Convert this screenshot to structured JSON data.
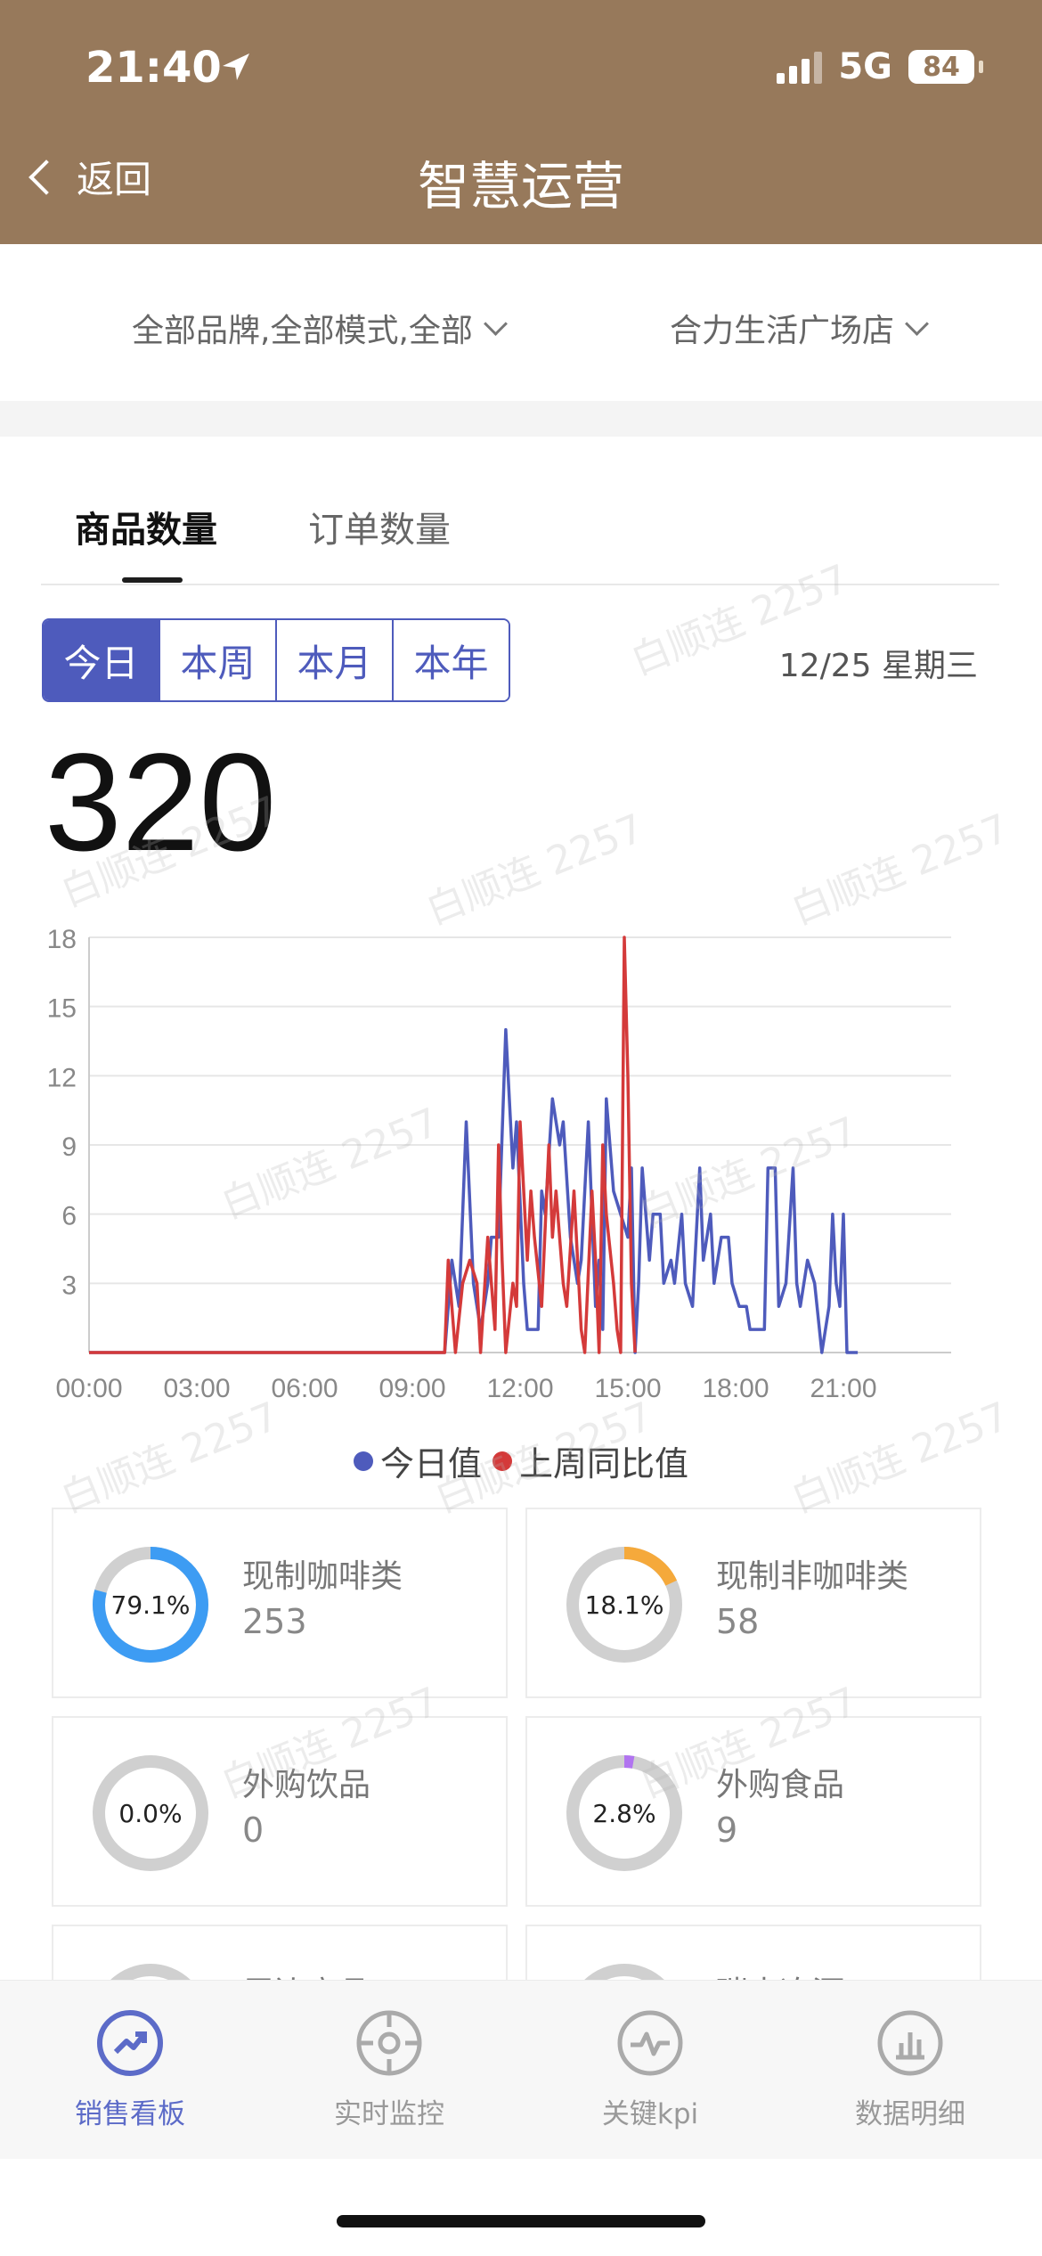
{
  "status": {
    "time": "21:40",
    "network": "5G",
    "battery": "84"
  },
  "nav": {
    "back_label": "返回",
    "title": "智慧运营"
  },
  "filters": {
    "brand": "全部品牌,全部模式,全部",
    "store": "合力生活广场店"
  },
  "tabs": [
    "商品数量",
    "订单数量"
  ],
  "periods": [
    "今日",
    "本周",
    "本月",
    "本年"
  ],
  "date": "12/25 星期三",
  "total": "320",
  "watermark": "白顺连 2257",
  "chart_data": {
    "type": "line",
    "x_ticks": [
      "00:00",
      "03:00",
      "06:00",
      "09:00",
      "12:00",
      "15:00",
      "18:00",
      "21:00"
    ],
    "y_ticks": [
      "3",
      "6",
      "9",
      "12",
      "15",
      "18"
    ],
    "xlim": [
      0,
      24
    ],
    "ylim": [
      0,
      18
    ],
    "series": [
      {
        "name": "今日值",
        "color": "#4e5bbc",
        "points": [
          [
            0,
            0
          ],
          [
            9.9,
            0
          ],
          [
            10.1,
            4
          ],
          [
            10.3,
            2
          ],
          [
            10.5,
            10
          ],
          [
            10.7,
            3
          ],
          [
            10.9,
            1
          ],
          [
            11.1,
            3
          ],
          [
            11.2,
            5
          ],
          [
            11.4,
            5
          ],
          [
            11.6,
            14
          ],
          [
            11.8,
            8
          ],
          [
            11.9,
            10
          ],
          [
            12.1,
            3
          ],
          [
            12.2,
            1
          ],
          [
            12.5,
            1
          ],
          [
            12.6,
            7
          ],
          [
            12.7,
            6
          ],
          [
            12.9,
            11
          ],
          [
            13.1,
            9
          ],
          [
            13.2,
            10
          ],
          [
            13.4,
            5
          ],
          [
            13.6,
            3
          ],
          [
            13.7,
            4
          ],
          [
            13.9,
            10
          ],
          [
            14.1,
            2
          ],
          [
            14.2,
            4
          ],
          [
            14.3,
            1
          ],
          [
            14.4,
            11
          ],
          [
            14.6,
            7
          ],
          [
            14.8,
            6
          ],
          [
            15.0,
            5
          ],
          [
            15.1,
            8
          ],
          [
            15.2,
            0
          ],
          [
            15.3,
            3
          ],
          [
            15.4,
            8
          ],
          [
            15.6,
            4
          ],
          [
            15.7,
            6
          ],
          [
            15.9,
            6
          ],
          [
            16.0,
            3
          ],
          [
            16.2,
            4
          ],
          [
            16.3,
            3
          ],
          [
            16.5,
            6
          ],
          [
            16.6,
            3
          ],
          [
            16.8,
            2
          ],
          [
            17.0,
            8
          ],
          [
            17.1,
            4
          ],
          [
            17.3,
            6
          ],
          [
            17.4,
            3
          ],
          [
            17.6,
            5
          ],
          [
            17.8,
            5
          ],
          [
            17.9,
            3
          ],
          [
            18.1,
            2
          ],
          [
            18.3,
            2
          ],
          [
            18.4,
            1
          ],
          [
            18.8,
            1
          ],
          [
            18.9,
            8
          ],
          [
            19.1,
            8
          ],
          [
            19.2,
            2
          ],
          [
            19.4,
            3
          ],
          [
            19.6,
            8
          ],
          [
            19.7,
            3
          ],
          [
            19.8,
            2
          ],
          [
            20.0,
            4
          ],
          [
            20.2,
            3
          ],
          [
            20.4,
            0
          ],
          [
            20.6,
            2
          ],
          [
            20.7,
            6
          ],
          [
            20.8,
            3
          ],
          [
            20.9,
            2
          ],
          [
            21.0,
            6
          ],
          [
            21.1,
            0
          ],
          [
            21.4,
            0
          ]
        ]
      },
      {
        "name": "上周同比值",
        "color": "#d43a3a",
        "points": [
          [
            0,
            0
          ],
          [
            9.9,
            0
          ],
          [
            10.0,
            4
          ],
          [
            10.2,
            0
          ],
          [
            10.4,
            3
          ],
          [
            10.6,
            4
          ],
          [
            10.8,
            3
          ],
          [
            10.9,
            0
          ],
          [
            11.1,
            5
          ],
          [
            11.3,
            1
          ],
          [
            11.4,
            9
          ],
          [
            11.5,
            4
          ],
          [
            11.6,
            0
          ],
          [
            11.8,
            3
          ],
          [
            11.9,
            2
          ],
          [
            12.0,
            10
          ],
          [
            12.2,
            4
          ],
          [
            12.3,
            7
          ],
          [
            12.4,
            5
          ],
          [
            12.6,
            2
          ],
          [
            12.8,
            9
          ],
          [
            12.9,
            5
          ],
          [
            13.0,
            7
          ],
          [
            13.2,
            3
          ],
          [
            13.3,
            2
          ],
          [
            13.5,
            7
          ],
          [
            13.7,
            1
          ],
          [
            13.8,
            0
          ],
          [
            14.0,
            7
          ],
          [
            14.1,
            4
          ],
          [
            14.2,
            0
          ],
          [
            14.3,
            9
          ],
          [
            14.4,
            6
          ],
          [
            14.6,
            3
          ],
          [
            14.7,
            1
          ],
          [
            14.8,
            0
          ],
          [
            14.9,
            18
          ],
          [
            15.0,
            12
          ],
          [
            15.1,
            3
          ],
          [
            15.2,
            0
          ]
        ]
      }
    ]
  },
  "legend": [
    "今日值",
    "上周同比值"
  ],
  "cards": [
    {
      "title": "现制咖啡类",
      "value": "253",
      "percent_text": "79.1%",
      "percent": 79.1,
      "color": "#3d9cf3"
    },
    {
      "title": "现制非咖啡类",
      "value": "58",
      "percent_text": "18.1%",
      "percent": 18.1,
      "color": "#f5a93b"
    },
    {
      "title": "外购饮品",
      "value": "0",
      "percent_text": "0.0%",
      "percent": 0,
      "color": "#3d9cf3"
    },
    {
      "title": "外购食品",
      "value": "9",
      "percent_text": "2.8%",
      "percent": 2.8,
      "color": "#b174f0"
    },
    {
      "title": "周边商品",
      "value": "",
      "percent_text": "",
      "percent": 0,
      "color": "#3d9cf3"
    },
    {
      "title": "瑞幸冻酒",
      "value": "",
      "percent_text": "",
      "percent": 0,
      "color": "#3d9cf3"
    }
  ],
  "bottom_nav": [
    "销售看板",
    "实时监控",
    "关键kpi",
    "数据明细"
  ]
}
